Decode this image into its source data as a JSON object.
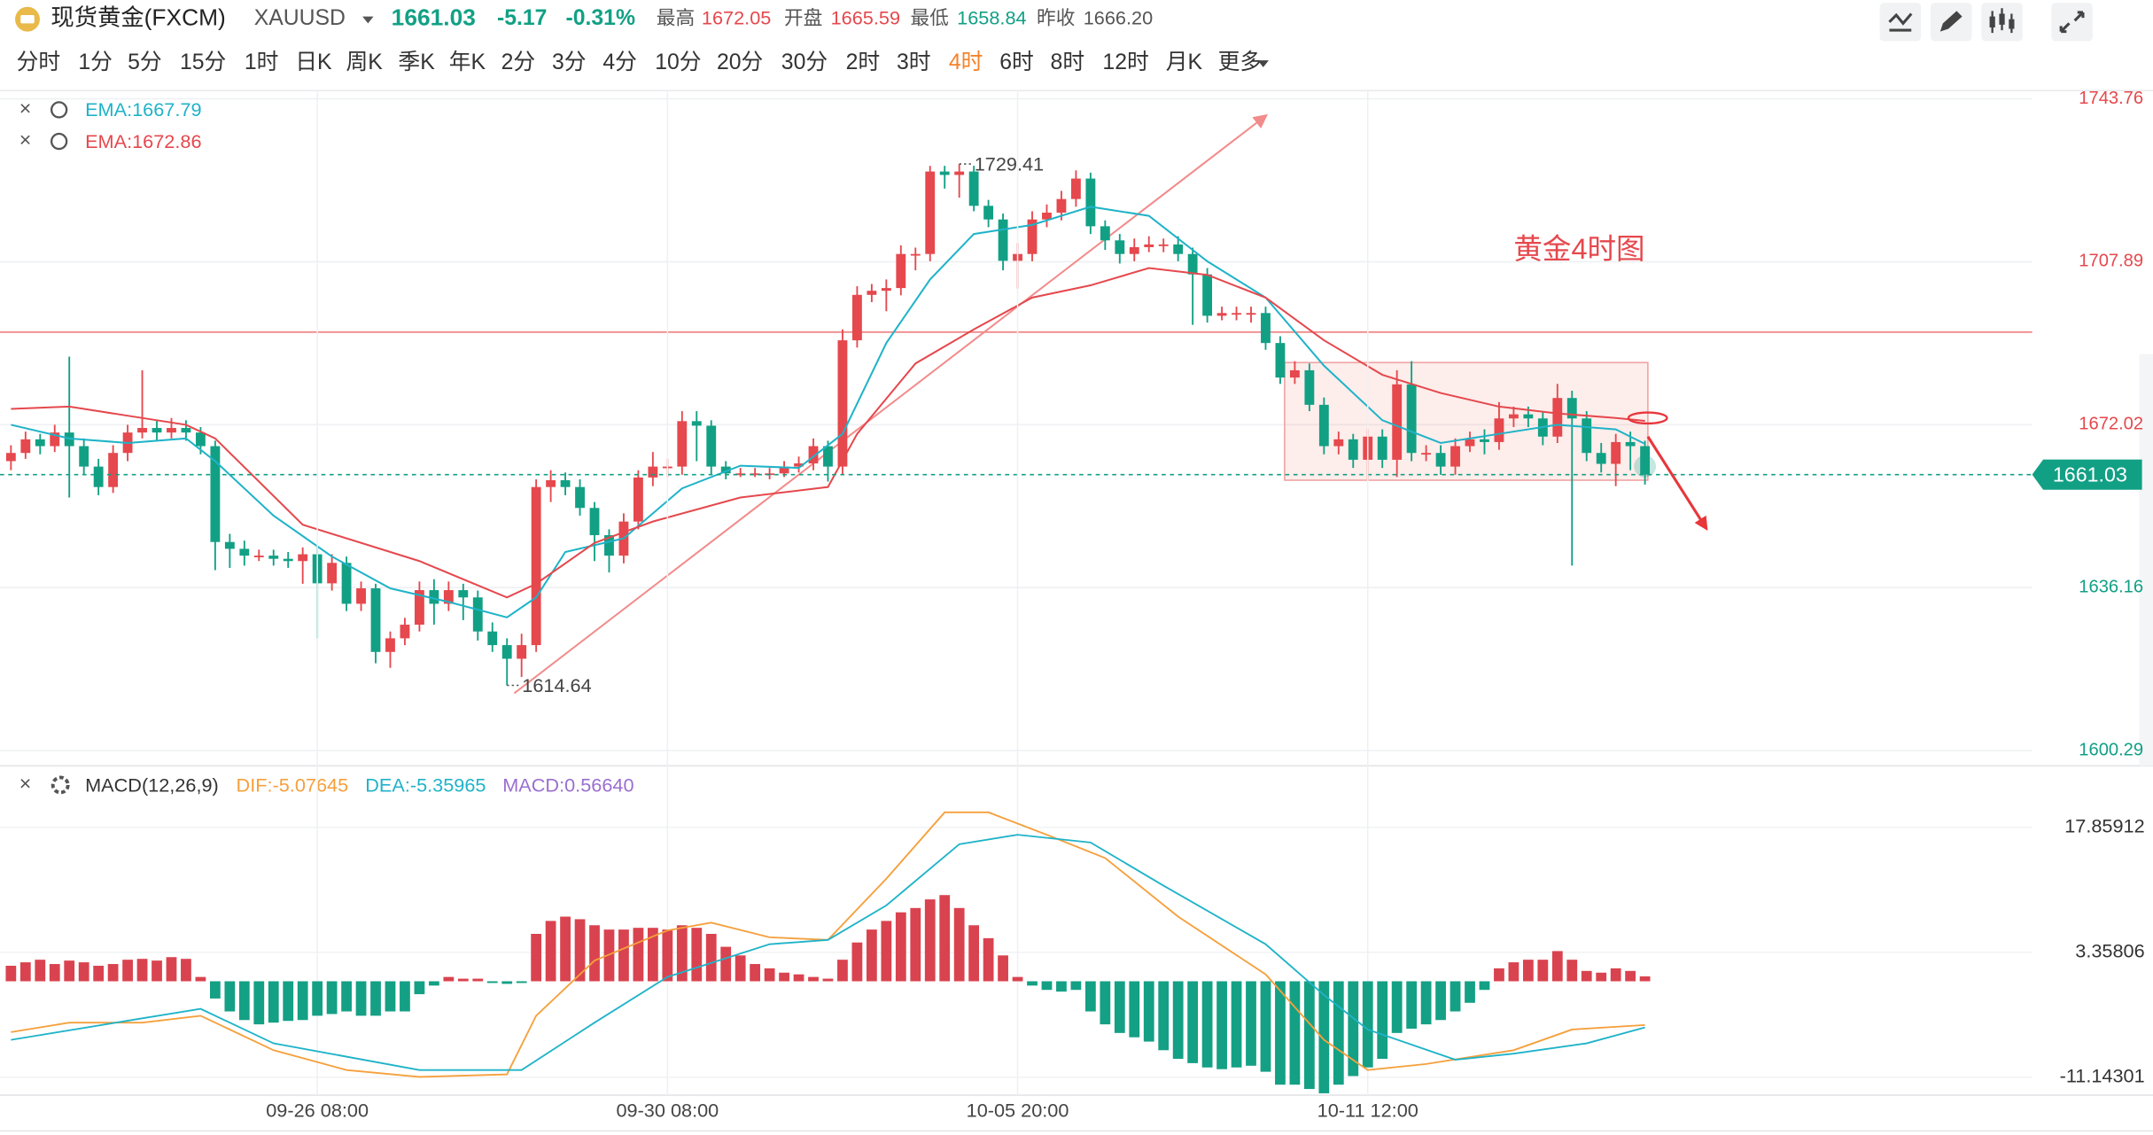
{
  "header": {
    "symbol_name": "现货黄金(FXCM)",
    "ticker": "XAUUSD",
    "price": "1661.03",
    "change": "-5.17",
    "change_pct": "-0.31%",
    "stats": [
      {
        "label": "最高",
        "value": "1672.05"
      },
      {
        "label": "开盘",
        "value": "1665.59"
      },
      {
        "label": "最低",
        "value": "1658.84"
      },
      {
        "label": "昨收",
        "value": "1666.20"
      }
    ]
  },
  "timeframes": [
    "分时",
    "1分",
    "5分",
    "15分",
    "1时",
    "日K",
    "周K",
    "季K",
    "年K",
    "2分",
    "3分",
    "4分",
    "10分",
    "20分",
    "30分",
    "2时",
    "3时",
    "4时",
    "6时",
    "8时",
    "12时",
    "月K"
  ],
  "active_timeframe": 17,
  "more": "更多",
  "chart_data": [
    {
      "type": "candlestick",
      "up_color": "#e5484d",
      "down_color": "#12a085",
      "xlim": [
        -0.75,
        138.54
      ],
      "ylim": [
        1596.93,
        1745.57
      ],
      "yticks": [
        1743.76,
        1707.89,
        1672.02,
        1636.16,
        1600.29
      ],
      "grid": true,
      "candles": [
        [
          1664.0,
          1667.5,
          1662.0,
          1665.8
        ],
        [
          1665.8,
          1670.5,
          1664.5,
          1668.8
        ],
        [
          1668.8,
          1670.0,
          1665.5,
          1667.3
        ],
        [
          1667.3,
          1672.0,
          1666.0,
          1670.3
        ],
        [
          1670.3,
          1687.0,
          1656.0,
          1667.3
        ],
        [
          1667.3,
          1669.0,
          1661.0,
          1662.8
        ],
        [
          1662.8,
          1664.5,
          1656.5,
          1658.3
        ],
        [
          1658.3,
          1667.5,
          1657.0,
          1665.8
        ],
        [
          1665.8,
          1672.0,
          1664.0,
          1670.3
        ],
        [
          1670.3,
          1684.0,
          1669.0,
          1671.3
        ],
        [
          1671.3,
          1673.0,
          1668.5,
          1670.3
        ],
        [
          1670.3,
          1673.5,
          1669.0,
          1671.3
        ],
        [
          1671.3,
          1673.0,
          1668.5,
          1670.3
        ],
        [
          1670.3,
          1671.5,
          1665.5,
          1667.3
        ],
        [
          1667.3,
          1668.5,
          1640.0,
          1646.2
        ],
        [
          1646.2,
          1648.0,
          1640.5,
          1644.7
        ],
        [
          1644.7,
          1646.5,
          1641.0,
          1643.2
        ],
        [
          1643.2,
          1644.5,
          1642.0,
          1643.2
        ],
        [
          1643.2,
          1644.5,
          1641.0,
          1642.5
        ],
        [
          1642.5,
          1644.0,
          1640.5,
          1642.0
        ],
        [
          1642.0,
          1645.0,
          1637.0,
          1643.5
        ],
        [
          1643.5,
          1645.5,
          1625.0,
          1637.1
        ],
        [
          1637.1,
          1643.5,
          1635.5,
          1641.6
        ],
        [
          1641.6,
          1643.0,
          1631.0,
          1632.6
        ],
        [
          1632.6,
          1637.5,
          1631.0,
          1636.0
        ],
        [
          1636.0,
          1637.0,
          1619.5,
          1622.0
        ],
        [
          1622.0,
          1626.5,
          1618.5,
          1625.0
        ],
        [
          1625.0,
          1629.5,
          1623.5,
          1628.0
        ],
        [
          1628.0,
          1637.5,
          1626.5,
          1635.6
        ],
        [
          1635.6,
          1638.0,
          1628.0,
          1632.6
        ],
        [
          1632.6,
          1637.5,
          1631.0,
          1635.6
        ],
        [
          1635.6,
          1637.0,
          1629.0,
          1634.0
        ],
        [
          1634.0,
          1635.5,
          1624.5,
          1626.5
        ],
        [
          1626.5,
          1628.5,
          1622.0,
          1623.5
        ],
        [
          1623.5,
          1625.0,
          1614.64,
          1620.5
        ],
        [
          1620.5,
          1626.0,
          1616.5,
          1623.5
        ],
        [
          1623.5,
          1660.0,
          1622.0,
          1658.3
        ],
        [
          1658.3,
          1662.0,
          1655.0,
          1659.8
        ],
        [
          1659.8,
          1661.5,
          1656.5,
          1658.3
        ],
        [
          1658.3,
          1660.0,
          1652.0,
          1653.7
        ],
        [
          1653.7,
          1655.0,
          1642.0,
          1647.7
        ],
        [
          1647.7,
          1649.0,
          1639.5,
          1643.2
        ],
        [
          1643.2,
          1652.5,
          1641.5,
          1650.7
        ],
        [
          1650.7,
          1662.0,
          1649.0,
          1660.4
        ],
        [
          1660.4,
          1666.0,
          1658.5,
          1662.8
        ],
        [
          1662.8,
          1664.5,
          1660.5,
          1662.8
        ],
        [
          1662.8,
          1675.0,
          1661.0,
          1672.8
        ],
        [
          1672.8,
          1675.0,
          1664.0,
          1671.8
        ],
        [
          1671.8,
          1673.0,
          1661.0,
          1662.8
        ],
        [
          1662.8,
          1664.0,
          1660.0,
          1661.3
        ],
        [
          1661.3,
          1662.5,
          1660.5,
          1661.3
        ],
        [
          1661.3,
          1662.5,
          1660.5,
          1661.3
        ],
        [
          1661.3,
          1662.5,
          1660.0,
          1661.3
        ],
        [
          1661.3,
          1664.0,
          1660.5,
          1662.8
        ],
        [
          1662.8,
          1665.0,
          1661.5,
          1663.5
        ],
        [
          1663.5,
          1669.0,
          1662.0,
          1667.3
        ],
        [
          1667.3,
          1668.5,
          1659.5,
          1662.8
        ],
        [
          1662.8,
          1693.0,
          1661.0,
          1690.6
        ],
        [
          1690.6,
          1702.5,
          1689.0,
          1700.6
        ],
        [
          1700.6,
          1703.0,
          1699.0,
          1701.5
        ],
        [
          1701.5,
          1704.0,
          1697.0,
          1702.1
        ],
        [
          1702.1,
          1711.5,
          1700.5,
          1709.6
        ],
        [
          1709.6,
          1711.0,
          1706.0,
          1709.6
        ],
        [
          1709.6,
          1729.0,
          1708.0,
          1727.75
        ],
        [
          1727.75,
          1729.0,
          1724.0,
          1727.0
        ],
        [
          1727.0,
          1729.41,
          1722.0,
          1727.75
        ],
        [
          1727.75,
          1729.0,
          1719.0,
          1720.2
        ],
        [
          1720.2,
          1721.5,
          1715.5,
          1717.2
        ],
        [
          1717.2,
          1718.5,
          1706.0,
          1708.1
        ],
        [
          1708.1,
          1712.0,
          1702.0,
          1709.6
        ],
        [
          1709.6,
          1719.0,
          1708.0,
          1717.2
        ],
        [
          1717.2,
          1720.5,
          1715.5,
          1718.7
        ],
        [
          1718.7,
          1723.5,
          1717.0,
          1721.7
        ],
        [
          1721.7,
          1728.0,
          1720.0,
          1726.2
        ],
        [
          1726.2,
          1727.5,
          1714.0,
          1715.7
        ],
        [
          1715.7,
          1717.0,
          1710.5,
          1712.6
        ],
        [
          1712.6,
          1714.0,
          1707.5,
          1709.6
        ],
        [
          1709.6,
          1713.0,
          1708.0,
          1711.1
        ],
        [
          1711.1,
          1713.5,
          1710.0,
          1711.7
        ],
        [
          1711.7,
          1713.0,
          1710.0,
          1711.7
        ],
        [
          1711.7,
          1713.5,
          1708.0,
          1709.6
        ],
        [
          1709.6,
          1711.0,
          1694.0,
          1705.1
        ],
        [
          1705.1,
          1706.5,
          1694.5,
          1696.0
        ],
        [
          1696.0,
          1698.0,
          1695.0,
          1696.6
        ],
        [
          1696.6,
          1698.0,
          1695.0,
          1696.6
        ],
        [
          1696.6,
          1698.0,
          1694.5,
          1696.6
        ],
        [
          1696.6,
          1698.0,
          1688.5,
          1690.0
        ],
        [
          1690.0,
          1691.5,
          1681.0,
          1682.4
        ],
        [
          1682.4,
          1686.0,
          1681.0,
          1684.0
        ],
        [
          1684.0,
          1685.5,
          1675.0,
          1676.4
        ],
        [
          1676.4,
          1678.0,
          1665.5,
          1667.3
        ],
        [
          1667.3,
          1670.5,
          1665.5,
          1668.8
        ],
        [
          1668.8,
          1670.0,
          1662.5,
          1664.3
        ],
        [
          1664.3,
          1671.0,
          1660.0,
          1669.4
        ],
        [
          1669.4,
          1671.0,
          1662.5,
          1664.3
        ],
        [
          1664.3,
          1684.0,
          1660.5,
          1680.9
        ],
        [
          1680.9,
          1686.0,
          1664.0,
          1665.8
        ],
        [
          1665.8,
          1667.5,
          1664.0,
          1665.8
        ],
        [
          1665.8,
          1667.5,
          1661.0,
          1662.8
        ],
        [
          1662.8,
          1669.0,
          1661.0,
          1667.3
        ],
        [
          1667.3,
          1670.5,
          1666.0,
          1668.8
        ],
        [
          1668.8,
          1671.0,
          1665.5,
          1668.2
        ],
        [
          1668.2,
          1677.0,
          1666.5,
          1673.4
        ],
        [
          1673.4,
          1676.0,
          1671.5,
          1674.3
        ],
        [
          1674.3,
          1676.0,
          1671.5,
          1673.4
        ],
        [
          1673.4,
          1675.0,
          1667.5,
          1669.4
        ],
        [
          1669.4,
          1681.0,
          1668.0,
          1677.9
        ],
        [
          1677.9,
          1679.5,
          1641.0,
          1673.4
        ],
        [
          1673.4,
          1675.0,
          1664.0,
          1665.8
        ],
        [
          1665.8,
          1668.0,
          1661.5,
          1663.4
        ],
        [
          1663.4,
          1670.0,
          1658.5,
          1668.2
        ],
        [
          1668.2,
          1670.5,
          1662.0,
          1667.3
        ],
        [
          1667.3,
          1668.5,
          1658.84,
          1661.03
        ]
      ],
      "series": [
        {
          "name": "EMA:1667.79",
          "color": "#1fb3c8",
          "x": [
            0,
            4,
            8,
            12,
            14,
            18,
            22,
            26,
            30,
            34,
            36,
            38,
            42,
            46,
            50,
            54,
            57,
            60,
            63,
            66,
            70,
            74,
            78,
            82,
            86,
            90,
            94,
            98,
            102,
            106,
            110,
            112
          ],
          "values": [
            1672,
            1669,
            1668,
            1669,
            1664,
            1652,
            1643,
            1636,
            1633,
            1629.6,
            1634,
            1644,
            1647,
            1658,
            1663,
            1662.5,
            1670,
            1690,
            1704,
            1714,
            1716,
            1720,
            1718,
            1708,
            1700,
            1685,
            1673,
            1668,
            1670,
            1672,
            1671,
            1667.79
          ]
        },
        {
          "name": "EMA:1672.86",
          "color": "#e5484d",
          "x": [
            0,
            4,
            8,
            12,
            14,
            20,
            28,
            34,
            36,
            40,
            44,
            50,
            56,
            58,
            62,
            66,
            70,
            74,
            78,
            82,
            86,
            90,
            94,
            98,
            102,
            106,
            110,
            112
          ],
          "values": [
            1675.5,
            1676,
            1674,
            1672,
            1669,
            1650,
            1642,
            1634,
            1637,
            1646,
            1650.7,
            1656,
            1658.3,
            1670,
            1685.5,
            1693,
            1700,
            1702.7,
            1706.5,
            1705,
            1700,
            1690.6,
            1683,
            1679,
            1676,
            1674.5,
            1673.5,
            1672.86
          ]
        }
      ],
      "level": 1692.4,
      "trend_line": [
        [
          34.5,
          1612.9
        ],
        [
          86,
          1740
        ]
      ],
      "range_box": {
        "x": [
          87.3,
          112.2
        ],
        "y": [
          1659.8,
          1685.7
        ]
      },
      "target_arrow": [
        [
          112.2,
          1669.4
        ],
        [
          116.2,
          1649.2
        ]
      ],
      "marker": [
        112,
        1673.5
      ],
      "annotation": {
        "text": "黄金4时图",
        "x": 103,
        "y": 1710.2
      }
    },
    {
      "type": "macd",
      "title": "MACD(12,26,9)",
      "name": "MACD:0.56640",
      "up_color": "#d9434f",
      "down_color": "#14a085",
      "xlim": [
        -0.75,
        138.54
      ],
      "ylim": [
        -13.22,
        24.68
      ],
      "yticks": [
        17.85912,
        3.35806,
        -11.14301
      ],
      "xticks": [
        {
          "value": 21,
          "label": "09-26 08:00"
        },
        {
          "value": 45,
          "label": "09-30 08:00"
        },
        {
          "value": 69,
          "label": "10-05 20:00"
        },
        {
          "value": 93,
          "label": "10-11 12:00"
        }
      ],
      "values": [
        1.8,
        2.2,
        2.5,
        2.0,
        2.4,
        2.2,
        1.8,
        2.0,
        2.5,
        2.6,
        2.4,
        2.8,
        2.6,
        0.5,
        -2,
        -3.5,
        -4.5,
        -5,
        -4.8,
        -4.6,
        -4.5,
        -4,
        -3.8,
        -3.5,
        -4,
        -4,
        -3.5,
        -3.5,
        -1.5,
        -0.5,
        0.5,
        0.3,
        0.3,
        -0.2,
        -0.3,
        -0.2,
        5.5,
        7,
        7.5,
        7.2,
        6.5,
        6,
        6,
        6.2,
        6.2,
        6,
        6.5,
        6.2,
        5.5,
        4,
        3,
        2,
        1.5,
        1,
        0.8,
        0.5,
        0.3,
        2.5,
        4.5,
        6,
        7,
        8,
        8.5,
        9.5,
        10,
        8.5,
        6.5,
        5,
        3,
        0.5,
        -0.5,
        -1,
        -1.2,
        -1,
        -3.5,
        -5,
        -6,
        -6.5,
        -7,
        -8,
        -9,
        -9.5,
        -10,
        -10.2,
        -10,
        -9.8,
        -10.5,
        -12,
        -12,
        -12.5,
        -13,
        -12,
        -11,
        -10,
        -9,
        -6,
        -5.5,
        -5,
        -4.5,
        -3.5,
        -2.5,
        -1,
        1.5,
        2.2,
        2.5,
        2.5,
        3.5,
        2.5,
        1.2,
        1,
        1.5,
        1.2,
        0.5664
      ],
      "series": [
        {
          "name": "DIF:-5.07645",
          "color": "#f5a03c",
          "x": [
            0,
            4,
            9,
            13,
            18,
            23,
            28,
            34,
            36,
            40,
            45,
            48,
            52,
            56,
            60,
            64,
            67,
            71,
            75,
            80,
            86,
            90,
            93,
            97,
            103,
            107,
            112
          ],
          "values": [
            -5.9,
            -4.8,
            -4.8,
            -4,
            -8,
            -10.3,
            -11.1,
            -10.8,
            -4,
            2.4,
            5.9,
            6.8,
            5.1,
            4.8,
            11.9,
            19.6,
            19.6,
            17,
            14.3,
            7.5,
            0.8,
            -6.8,
            -10.3,
            -9.6,
            -8,
            -5.6,
            -5.07645
          ]
        },
        {
          "name": "DEA:-5.35965",
          "color": "#1fb3c8",
          "x": [
            0,
            9,
            13,
            18,
            28,
            35,
            40,
            45,
            52,
            56,
            60,
            65,
            69,
            74,
            79,
            86,
            90,
            93,
            99,
            103,
            108,
            112
          ],
          "values": [
            -6.8,
            -4.3,
            -3.2,
            -7.2,
            -10.3,
            -10.3,
            -4.8,
            0.5,
            4.3,
            4.8,
            8.8,
            15.9,
            17,
            16.1,
            11.1,
            4.3,
            -1.6,
            -5.6,
            -9.1,
            -8.4,
            -7.2,
            -5.35965
          ]
        }
      ]
    }
  ]
}
